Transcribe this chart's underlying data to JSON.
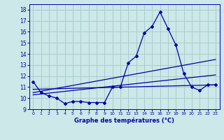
{
  "xlabel": "Graphe des températures (°C)",
  "background_color": "#cce8e8",
  "grid_color": "#aacccc",
  "line_color": "#0000aa",
  "x_ticks": [
    0,
    1,
    2,
    3,
    4,
    5,
    6,
    7,
    8,
    9,
    10,
    11,
    12,
    13,
    14,
    15,
    16,
    17,
    18,
    19,
    20,
    21,
    22,
    23
  ],
  "ylim": [
    9,
    18.5
  ],
  "yticks": [
    9,
    10,
    11,
    12,
    13,
    14,
    15,
    16,
    17,
    18
  ],
  "curve1_x": [
    0,
    1,
    2,
    3,
    4,
    5,
    6,
    7,
    8,
    9,
    10,
    11,
    12,
    13,
    14,
    15,
    16,
    17,
    18,
    19,
    20,
    21,
    22,
    23
  ],
  "curve1_y": [
    11.5,
    10.5,
    10.2,
    10.0,
    9.5,
    9.7,
    9.7,
    9.6,
    9.6,
    9.6,
    11.0,
    11.0,
    13.2,
    13.8,
    15.9,
    16.5,
    17.8,
    16.3,
    14.8,
    12.2,
    11.0,
    10.7,
    11.2,
    11.2
  ],
  "curve2_x": [
    0,
    23
  ],
  "curve2_y": [
    10.8,
    11.2
  ],
  "curve3_x": [
    0,
    23
  ],
  "curve3_y": [
    10.5,
    13.5
  ],
  "curve4_x": [
    0,
    23
  ],
  "curve4_y": [
    10.3,
    12.1
  ]
}
